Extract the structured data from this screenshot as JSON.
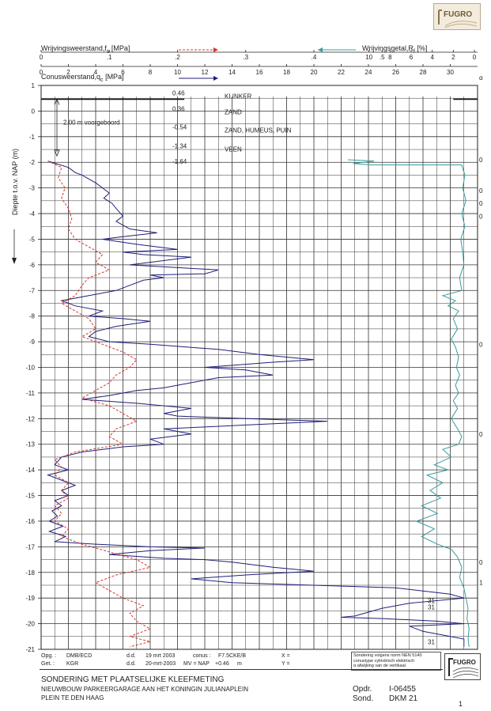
{
  "header": {
    "fs_label": "Wrijvingsweerstand,f",
    "fs_sub": "s",
    "fs_unit": "[MPa]",
    "rf_label": "Wrijvingsgetal,R",
    "rf_sub": "f",
    "rf_unit": "[%]",
    "qc_label": "Conusweerstand,q",
    "qc_sub": "c",
    "qc_unit": "[MPa]",
    "alpha_symbol": "α",
    "fs_ticks": [
      "0",
      ".1",
      ".2",
      ".3",
      ".4",
      ".5"
    ],
    "rf_ticks": [
      "10",
      "8",
      "6",
      "4",
      "2",
      "0"
    ],
    "qc_ticks": [
      "0",
      "2",
      "4",
      "6",
      "8",
      "10",
      "12",
      "14",
      "16",
      "18",
      "20",
      "22",
      "24",
      "26",
      "28",
      "30"
    ]
  },
  "chart_data": {
    "type": "line",
    "ylabel": "Diepte t.o.v. NAP (m)",
    "ylim": [
      1,
      -21
    ],
    "y_ticks": [
      1,
      0,
      -1,
      -2,
      -3,
      -4,
      -5,
      -6,
      -7,
      -8,
      -9,
      -10,
      -11,
      -12,
      -13,
      -14,
      -15,
      -16,
      -17,
      -18,
      -19,
      -20,
      -21
    ],
    "qc_xlim": [
      0,
      32
    ],
    "fs_xlim": [
      0,
      0.64
    ],
    "rf_xlim": [
      12,
      0
    ],
    "series": [
      {
        "name": "Conusweerstand qc",
        "color": "#1f1f7a",
        "points": [
          [
            0.5,
            -1.95
          ],
          [
            2,
            -2.2
          ],
          [
            2.5,
            -2.4
          ],
          [
            3,
            -2.5
          ],
          [
            4,
            -2.8
          ],
          [
            4.5,
            -3.0
          ],
          [
            5,
            -3.2
          ],
          [
            4.6,
            -3.4
          ],
          [
            5.2,
            -3.6
          ],
          [
            5.5,
            -3.8
          ],
          [
            6,
            -4.1
          ],
          [
            5.5,
            -4.3
          ],
          [
            6.5,
            -4.6
          ],
          [
            8.5,
            -4.75
          ],
          [
            6,
            -4.9
          ],
          [
            4.5,
            -5.0
          ],
          [
            7,
            -5.2
          ],
          [
            10,
            -5.4
          ],
          [
            6,
            -5.5
          ],
          [
            7.5,
            -5.6
          ],
          [
            11,
            -5.7
          ],
          [
            8,
            -5.9
          ],
          [
            6.5,
            -6.0
          ],
          [
            13,
            -6.2
          ],
          [
            12,
            -6.35
          ],
          [
            8,
            -6.4
          ],
          [
            9,
            -6.5
          ],
          [
            7.5,
            -6.6
          ],
          [
            6.5,
            -6.8
          ],
          [
            5.5,
            -7.0
          ],
          [
            3.5,
            -7.2
          ],
          [
            1.5,
            -7.4
          ],
          [
            2.5,
            -7.6
          ],
          [
            4.5,
            -7.8
          ],
          [
            3.5,
            -8.0
          ],
          [
            6,
            -8.1
          ],
          [
            8,
            -8.2
          ],
          [
            5.5,
            -8.4
          ],
          [
            4,
            -8.6
          ],
          [
            3.5,
            -8.8
          ],
          [
            5,
            -9.0
          ],
          [
            8,
            -9.1
          ],
          [
            13,
            -9.3
          ],
          [
            16,
            -9.5
          ],
          [
            20,
            -9.7
          ],
          [
            17,
            -9.8
          ],
          [
            12,
            -10.0
          ],
          [
            15,
            -10.1
          ],
          [
            17,
            -10.3
          ],
          [
            13,
            -10.4
          ],
          [
            11,
            -10.6
          ],
          [
            9,
            -10.8
          ],
          [
            7,
            -10.9
          ],
          [
            5,
            -11.1
          ],
          [
            3,
            -11.25
          ],
          [
            7,
            -11.4
          ],
          [
            11,
            -11.6
          ],
          [
            9,
            -11.8
          ],
          [
            10,
            -11.9
          ],
          [
            15,
            -12.0
          ],
          [
            21,
            -12.1
          ],
          [
            15,
            -12.25
          ],
          [
            9,
            -12.4
          ],
          [
            11,
            -12.6
          ],
          [
            8,
            -12.8
          ],
          [
            9,
            -13.0
          ],
          [
            6,
            -13.1
          ],
          [
            3,
            -13.3
          ],
          [
            1.5,
            -13.5
          ],
          [
            1,
            -13.8
          ],
          [
            2,
            -14.0
          ],
          [
            0.5,
            -14.2
          ],
          [
            1.5,
            -14.4
          ],
          [
            2.5,
            -14.6
          ],
          [
            1.5,
            -14.8
          ],
          [
            2,
            -15.0
          ],
          [
            1,
            -15.2
          ],
          [
            1.5,
            -15.4
          ],
          [
            0.8,
            -15.6
          ],
          [
            1.2,
            -15.8
          ],
          [
            0.6,
            -16.0
          ],
          [
            1.6,
            -16.2
          ],
          [
            0.6,
            -16.4
          ],
          [
            1.8,
            -16.6
          ],
          [
            1,
            -16.8
          ],
          [
            4,
            -16.9
          ],
          [
            8,
            -17.0
          ],
          [
            12,
            -17.05
          ],
          [
            8,
            -17.15
          ],
          [
            5,
            -17.3
          ],
          [
            9,
            -17.45
          ],
          [
            12,
            -17.5
          ],
          [
            14,
            -17.6
          ],
          [
            17,
            -17.8
          ],
          [
            20,
            -17.95
          ],
          [
            15,
            -18.1
          ],
          [
            11,
            -18.25
          ],
          [
            14,
            -18.4
          ],
          [
            20,
            -18.5
          ],
          [
            26,
            -18.6
          ],
          [
            30,
            -18.85
          ],
          [
            31,
            -19.0
          ],
          [
            27,
            -19.2
          ],
          [
            25,
            -19.4
          ],
          [
            24,
            -19.55
          ],
          [
            23,
            -19.7
          ],
          [
            22,
            -19.75
          ],
          [
            25,
            -19.8
          ],
          [
            29,
            -19.9
          ],
          [
            31,
            -20.0
          ],
          [
            27,
            -20.1
          ],
          [
            28,
            -20.3
          ],
          [
            30,
            -20.5
          ],
          [
            31,
            -20.6
          ],
          [
            31,
            -20.9
          ]
        ]
      },
      {
        "name": "Wrijvingsweerstand fs",
        "color": "#d9342b",
        "points": [
          [
            0.01,
            -1.95
          ],
          [
            0.03,
            -2.2
          ],
          [
            0.025,
            -2.6
          ],
          [
            0.035,
            -3.0
          ],
          [
            0.03,
            -3.4
          ],
          [
            0.04,
            -3.8
          ],
          [
            0.045,
            -4.2
          ],
          [
            0.04,
            -4.6
          ],
          [
            0.05,
            -5.0
          ],
          [
            0.07,
            -5.3
          ],
          [
            0.09,
            -5.6
          ],
          [
            0.08,
            -5.9
          ],
          [
            0.1,
            -6.2
          ],
          [
            0.07,
            -6.5
          ],
          [
            0.06,
            -6.8
          ],
          [
            0.05,
            -7.2
          ],
          [
            0.03,
            -7.5
          ],
          [
            0.05,
            -7.8
          ],
          [
            0.07,
            -8.1
          ],
          [
            0.08,
            -8.5
          ],
          [
            0.06,
            -8.8
          ],
          [
            0.09,
            -9.1
          ],
          [
            0.12,
            -9.4
          ],
          [
            0.14,
            -9.7
          ],
          [
            0.13,
            -10.0
          ],
          [
            0.11,
            -10.3
          ],
          [
            0.1,
            -10.6
          ],
          [
            0.08,
            -10.9
          ],
          [
            0.06,
            -11.2
          ],
          [
            0.1,
            -11.5
          ],
          [
            0.12,
            -11.8
          ],
          [
            0.14,
            -12.1
          ],
          [
            0.11,
            -12.4
          ],
          [
            0.1,
            -12.7
          ],
          [
            0.12,
            -13.0
          ],
          [
            0.05,
            -13.3
          ],
          [
            0.02,
            -13.6
          ],
          [
            0.03,
            -13.9
          ],
          [
            0.02,
            -14.2
          ],
          [
            0.04,
            -14.5
          ],
          [
            0.03,
            -14.8
          ],
          [
            0.04,
            -15.1
          ],
          [
            0.02,
            -15.4
          ],
          [
            0.03,
            -15.7
          ],
          [
            0.02,
            -16.0
          ],
          [
            0.04,
            -16.3
          ],
          [
            0.03,
            -16.6
          ],
          [
            0.06,
            -16.9
          ],
          [
            0.1,
            -17.2
          ],
          [
            0.14,
            -17.5
          ],
          [
            0.16,
            -17.8
          ],
          [
            0.11,
            -18.1
          ],
          [
            0.08,
            -18.4
          ],
          [
            0.1,
            -18.7
          ],
          [
            0.12,
            -19.0
          ],
          [
            0.15,
            -19.3
          ],
          [
            0.13,
            -19.6
          ],
          [
            0.14,
            -19.9
          ],
          [
            0.16,
            -20.2
          ],
          [
            0.13,
            -20.5
          ],
          [
            0.16,
            -20.7
          ],
          [
            0.13,
            -20.9
          ]
        ]
      },
      {
        "name": "Wrijvingsgetal Rf",
        "color": "#3a9a9a",
        "points": [
          [
            12,
            -1.9
          ],
          [
            9.5,
            -1.95
          ],
          [
            11.5,
            -2.05
          ],
          [
            9.8,
            -2.1
          ],
          [
            1.2,
            -2.1
          ],
          [
            0.9,
            -2.5
          ],
          [
            1.1,
            -3.0
          ],
          [
            0.8,
            -3.5
          ],
          [
            1.2,
            -4.0
          ],
          [
            0.9,
            -4.5
          ],
          [
            1.3,
            -5.0
          ],
          [
            1.1,
            -5.5
          ],
          [
            1.0,
            -6.0
          ],
          [
            1.4,
            -6.5
          ],
          [
            1.2,
            -7.0
          ],
          [
            3,
            -7.2
          ],
          [
            1.8,
            -7.4
          ],
          [
            2.5,
            -7.6
          ],
          [
            1.5,
            -7.8
          ],
          [
            2,
            -8.1
          ],
          [
            1.6,
            -8.5
          ],
          [
            2.2,
            -8.9
          ],
          [
            1.8,
            -9.2
          ],
          [
            1.5,
            -9.6
          ],
          [
            1.7,
            -10.0
          ],
          [
            1.4,
            -10.3
          ],
          [
            1.8,
            -10.7
          ],
          [
            1.5,
            -11.0
          ],
          [
            2,
            -11.3
          ],
          [
            1.6,
            -11.6
          ],
          [
            2.2,
            -12.0
          ],
          [
            1.6,
            -12.4
          ],
          [
            1.2,
            -12.7
          ],
          [
            1.5,
            -13.0
          ],
          [
            3,
            -13.2
          ],
          [
            2.2,
            -13.5
          ],
          [
            3.8,
            -13.8
          ],
          [
            2.5,
            -14.0
          ],
          [
            4.5,
            -14.2
          ],
          [
            3,
            -14.5
          ],
          [
            4.2,
            -14.8
          ],
          [
            3.2,
            -15.1
          ],
          [
            5,
            -15.4
          ],
          [
            3.5,
            -15.7
          ],
          [
            5.5,
            -16.0
          ],
          [
            3.8,
            -16.3
          ],
          [
            5,
            -16.6
          ],
          [
            3.5,
            -16.9
          ],
          [
            2.2,
            -17.1
          ],
          [
            1.6,
            -17.4
          ],
          [
            1.2,
            -17.8
          ],
          [
            1.4,
            -18.2
          ],
          [
            1.0,
            -18.6
          ],
          [
            0.8,
            -19.0
          ],
          [
            0.6,
            -19.4
          ],
          [
            0.7,
            -19.8
          ],
          [
            0.5,
            -20.2
          ],
          [
            0.6,
            -20.6
          ],
          [
            0.5,
            -20.9
          ]
        ]
      }
    ]
  },
  "soil_layers": [
    {
      "level": "0.46",
      "name": "KLINKER"
    },
    {
      "level": "0.36",
      "name": "ZAND"
    },
    {
      "level": "-0.54",
      "name": "ZAND, HUMEUS, PUIN"
    },
    {
      "level": "-1.34",
      "name": "VEEN"
    },
    {
      "level": "-1.64",
      "name": ""
    }
  ],
  "predrill_label": "2.00 m voorgeboord",
  "alpha_values": [
    {
      "depth": -1.9,
      "value": "0"
    },
    {
      "depth": -3.1,
      "value": "0"
    },
    {
      "depth": -3.6,
      "value": "0"
    },
    {
      "depth": -4.1,
      "value": "0"
    },
    {
      "depth": -9.1,
      "value": "0"
    },
    {
      "depth": -12.6,
      "value": "0"
    },
    {
      "depth": -17.6,
      "value": "0"
    },
    {
      "depth": -18.4,
      "value": "1"
    }
  ],
  "qc_overflow": [
    {
      "depth": -19.1,
      "value": "31"
    },
    {
      "depth": -19.35,
      "value": "31"
    },
    {
      "depth": -20.7,
      "value": "31"
    }
  ],
  "meta": {
    "opg_label": "Opg. :",
    "opg_value": "DMB/ECD",
    "get_label": "Get. :",
    "get_value": "KGR",
    "dd_label": "d.d.",
    "dd1_value": "19 mrt 2003",
    "dd2_value": "20-mrt-2003",
    "conus_label": "conus :",
    "conus_value": "F7.5CKE/B",
    "mv_label": "MV = NAP",
    "mv_value": "+0.46",
    "mv_unit": "m",
    "x_label": "X =",
    "y_label": "Y ="
  },
  "norm_note": [
    "Sondering volgens norm NEN 5140",
    "conustype cylindrisch elektrisch",
    "α afwijking van de vertikaal"
  ],
  "title_block": {
    "title": "SONDERING MET PLAATSELIJKE KLEEFMETING",
    "line1": "NIEUWBOUW PARKEERGARAGE AAN HET KONINGIN JULIANAPLEIN",
    "line2": "PLEIN TE DEN HAAG",
    "opdr_label": "Opdr.",
    "opdr_value": "I-06455",
    "sond_label": "Sond.",
    "sond_value": "DKM 21",
    "page": "1"
  },
  "logo_text": "FUGRO",
  "colors": {
    "qc": "#1f1f7a",
    "fs": "#d9342b",
    "rf": "#3a9a9a",
    "grid": "#222222"
  }
}
